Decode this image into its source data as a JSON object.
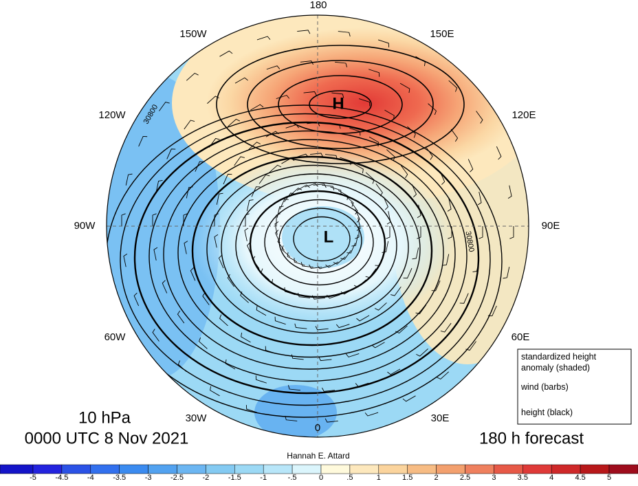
{
  "map": {
    "longitude_labels": [
      "180",
      "150E",
      "120E",
      "90E",
      "60E",
      "30E",
      "0",
      "30W",
      "60W",
      "90W",
      "120W",
      "150W"
    ],
    "high_label": "H",
    "low_label": "L",
    "contour_labels": [
      "30800",
      "30800"
    ],
    "level": "10 hPa",
    "valid_time": "0000 UTC 8 Nov 2021",
    "forecast": "180 h forecast",
    "author": "Hannah E. Attard"
  },
  "legend": {
    "lines": [
      "standardized height",
      "anomaly (shaded)",
      "wind (barbs)",
      "height (black)"
    ]
  },
  "colorbar": {
    "labels": [
      "-5",
      "-4.5",
      "-4",
      "-3.5",
      "-3",
      "-2.5",
      "-2",
      "-1.5",
      "-1",
      "-.5",
      "0",
      ".5",
      "1",
      "1.5",
      "2",
      "2.5",
      "3",
      "3.5",
      "4",
      "4.5",
      "5"
    ],
    "colors": [
      "#1414c8",
      "#2323de",
      "#2b52e6",
      "#3270ee",
      "#3b8bf0",
      "#52a2f0",
      "#6cb6f2",
      "#84caf2",
      "#9cd9f5",
      "#b8e6f9",
      "#dbf5fc",
      "#fffadc",
      "#fde8bd",
      "#fbd49d",
      "#f7bc84",
      "#f3a06e",
      "#ef805e",
      "#e75947",
      "#df3a38",
      "#cf2829",
      "#b8181a",
      "#9e0c1c"
    ]
  }
}
